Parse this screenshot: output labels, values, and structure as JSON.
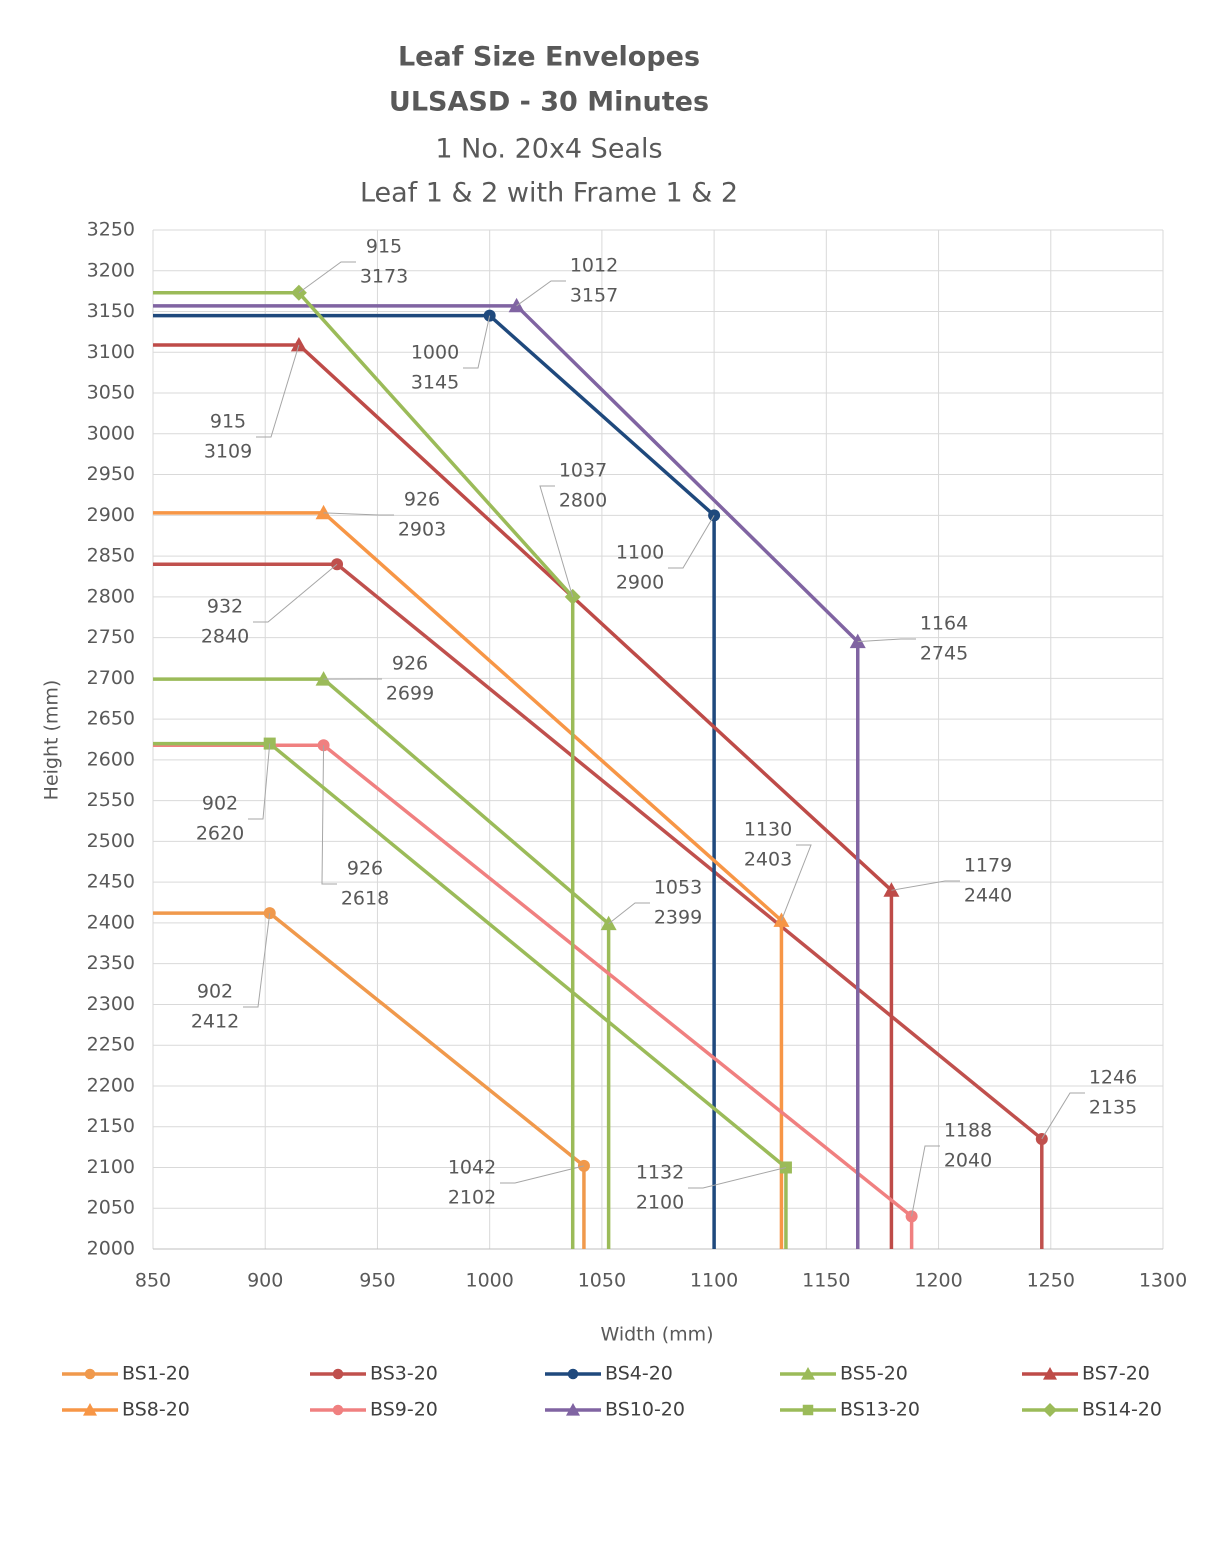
{
  "chart_data": {
    "type": "line",
    "title": "Leaf Size Envelopes",
    "subtitle_bold": "ULSASD - 30 Minutes",
    "subtitle_lines": [
      "1 No. 20x4 Seals",
      "Leaf 1 & 2 with Frame 1 & 2"
    ],
    "x_label": "Width (mm)",
    "y_label": "Height (mm)",
    "xlim": [
      850,
      1300
    ],
    "xticks": [
      850,
      900,
      950,
      1000,
      1050,
      1100,
      1150,
      1200,
      1250,
      1300
    ],
    "ylim": [
      2000,
      3250
    ],
    "yticks": [
      2000,
      2050,
      2100,
      2150,
      2200,
      2250,
      2300,
      2350,
      2400,
      2450,
      2500,
      2550,
      2600,
      2650,
      2700,
      2750,
      2800,
      2850,
      2900,
      2950,
      3000,
      3050,
      3100,
      3150,
      3200,
      3250
    ],
    "grid": true,
    "legend": "bottom",
    "series": [
      {
        "name": "BS1-20",
        "color": "#f0994c",
        "marker": "circle",
        "x": [
          850,
          902,
          1042,
          1042
        ],
        "values": [
          2412,
          2412,
          2102,
          2000
        ]
      },
      {
        "name": "BS3-20",
        "color": "#c0504d",
        "marker": "circle",
        "x": [
          850,
          932,
          1246,
          1246
        ],
        "values": [
          2840,
          2840,
          2135,
          2000
        ]
      },
      {
        "name": "BS4-20",
        "color": "#1f497d",
        "marker": "circle",
        "x": [
          850,
          1000,
          1100,
          1100
        ],
        "values": [
          3145,
          3145,
          2900,
          2000
        ]
      },
      {
        "name": "BS5-20",
        "color": "#9bbb59",
        "marker": "triangle",
        "x": [
          850,
          926,
          1053,
          1053
        ],
        "values": [
          2699,
          2699,
          2399,
          2000
        ]
      },
      {
        "name": "BS7-20",
        "color": "#be4b48",
        "marker": "triangle",
        "x": [
          850,
          915,
          1179,
          1179
        ],
        "values": [
          3109,
          3109,
          2440,
          2000
        ]
      },
      {
        "name": "BS8-20",
        "color": "#f79646",
        "marker": "triangle",
        "x": [
          850,
          926,
          1130,
          1130
        ],
        "values": [
          2903,
          2903,
          2403,
          2000
        ]
      },
      {
        "name": "BS9-20",
        "color": "#f08080",
        "marker": "circle",
        "x": [
          850,
          926,
          1188,
          1188
        ],
        "values": [
          2618,
          2618,
          2040,
          2000
        ]
      },
      {
        "name": "BS10-20",
        "color": "#8064a2",
        "marker": "triangle",
        "x": [
          850,
          1012,
          1164,
          1164
        ],
        "values": [
          3157,
          3157,
          2745,
          2000
        ]
      },
      {
        "name": "BS13-20",
        "color": "#9bbb59",
        "marker": "square",
        "x": [
          850,
          902,
          1132,
          1132
        ],
        "values": [
          2620,
          2620,
          2100,
          2000
        ]
      },
      {
        "name": "BS14-20",
        "color": "#9bbb59",
        "marker": "diamond",
        "x": [
          850,
          915,
          1037,
          1037
        ],
        "values": [
          3173,
          3173,
          2800,
          2000
        ]
      }
    ]
  }
}
